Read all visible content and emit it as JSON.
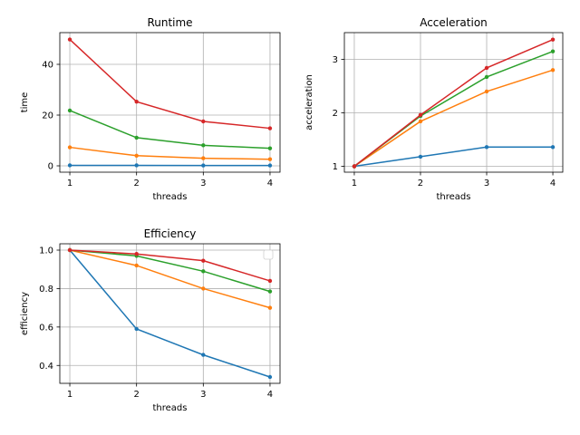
{
  "chart_data": [
    {
      "type": "line",
      "title": "Runtime",
      "xlabel": "threads",
      "ylabel": "time",
      "x": [
        1,
        2,
        3,
        4
      ],
      "xlim": [
        0.85,
        4.15
      ],
      "ylim": [
        -2.5,
        52.5
      ],
      "yticks": [
        0,
        20,
        40
      ],
      "grid": true,
      "series": [
        {
          "color": "#1f77b4",
          "values": [
            0.2,
            0.2,
            0.15,
            0.15
          ]
        },
        {
          "color": "#ff7f0e",
          "values": [
            7.3,
            4.0,
            3.0,
            2.6
          ]
        },
        {
          "color": "#2ca02c",
          "values": [
            21.8,
            11.1,
            8.1,
            6.9
          ]
        },
        {
          "color": "#d62728",
          "values": [
            49.8,
            25.3,
            17.5,
            14.8
          ]
        }
      ]
    },
    {
      "type": "line",
      "title": "Acceleration",
      "xlabel": "threads",
      "ylabel": "acceleration",
      "x": [
        1,
        2,
        3,
        4
      ],
      "xlim": [
        0.85,
        4.15
      ],
      "ylim": [
        0.89,
        3.5
      ],
      "yticks": [
        1,
        2,
        3
      ],
      "grid": true,
      "series": [
        {
          "color": "#1f77b4",
          "values": [
            1.0,
            1.18,
            1.36,
            1.36
          ]
        },
        {
          "color": "#ff7f0e",
          "values": [
            1.0,
            1.84,
            2.4,
            2.8
          ]
        },
        {
          "color": "#2ca02c",
          "values": [
            1.0,
            1.94,
            2.67,
            3.15
          ]
        },
        {
          "color": "#d62728",
          "values": [
            1.0,
            1.96,
            2.84,
            3.37
          ]
        }
      ]
    },
    {
      "type": "line",
      "title": "Efficiency",
      "xlabel": "threads",
      "ylabel": "efficiency",
      "x": [
        1,
        2,
        3,
        4
      ],
      "xlim": [
        0.85,
        4.15
      ],
      "ylim": [
        0.307,
        1.033
      ],
      "yticks": [
        0.4,
        0.6,
        0.8,
        1.0
      ],
      "ytick_labels": [
        "0.4",
        "0.6",
        "0.8",
        "1.0"
      ],
      "grid": true,
      "legend": "top-right",
      "series": [
        {
          "color": "#1f77b4",
          "values": [
            1.0,
            0.59,
            0.455,
            0.34
          ]
        },
        {
          "color": "#ff7f0e",
          "values": [
            1.0,
            0.92,
            0.8,
            0.7
          ]
        },
        {
          "color": "#2ca02c",
          "values": [
            1.0,
            0.97,
            0.89,
            0.785
          ]
        },
        {
          "color": "#d62728",
          "values": [
            1.0,
            0.98,
            0.945,
            0.84
          ]
        }
      ]
    }
  ]
}
